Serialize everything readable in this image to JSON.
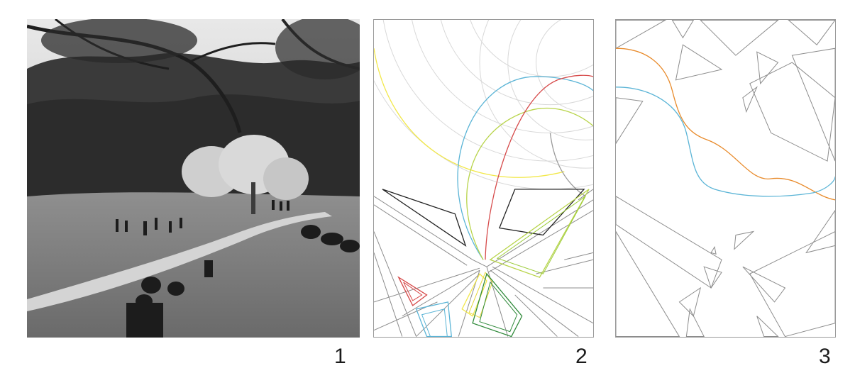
{
  "panels": [
    {
      "id": "photo",
      "label": "1"
    },
    {
      "id": "analysis-drawing",
      "label": "2"
    },
    {
      "id": "path-drawing",
      "label": "3"
    }
  ],
  "colors": {
    "frame": "#9a9a9a",
    "line_gray": "#8c8c8c",
    "yellow": "#f2e84a",
    "blue": "#5ab4d6",
    "lime": "#b8d44a",
    "red": "#d64a4a",
    "dark_green": "#2f8a3a",
    "orange": "#e88a2a",
    "black": "#222222"
  }
}
